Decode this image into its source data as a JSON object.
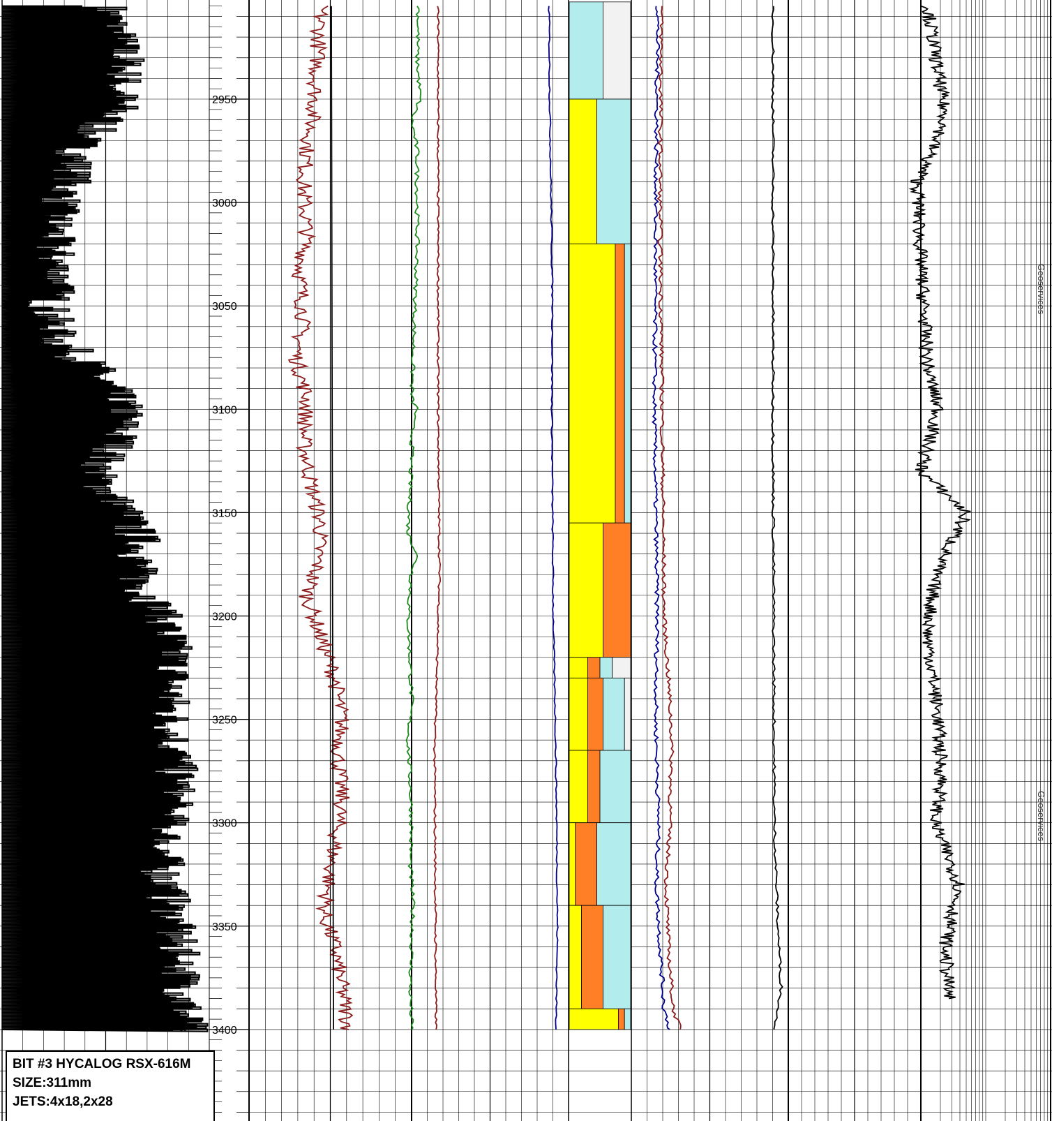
{
  "chart_data": {
    "type": "line",
    "title": "",
    "ylabel": "",
    "depth_range": [
      2903,
      3440
    ],
    "depth_ticks": [
      2950,
      3000,
      3050,
      3100,
      3150,
      3200,
      3250,
      3300,
      3350,
      3400
    ],
    "total_depth": 3400,
    "series": [
      {
        "track": "drilling-rate",
        "color": "#000000",
        "depth": [
          2905,
          2930,
          2955,
          2970,
          2990,
          3005,
          3020,
          3035,
          3050,
          3065,
          3080,
          3100,
          3115,
          3130,
          3150,
          3165,
          3180,
          3195,
          3210,
          3225,
          3240,
          3260,
          3280,
          3300,
          3320,
          3340,
          3360,
          3380,
          3400
        ],
        "values": [
          150,
          175,
          165,
          110,
          95,
          75,
          70,
          80,
          65,
          75,
          130,
          175,
          165,
          130,
          175,
          200,
          190,
          220,
          240,
          245,
          240,
          245,
          250,
          235,
          230,
          240,
          250,
          260,
          265
        ]
      },
      {
        "track": "gamma",
        "color": "#8b1a1a",
        "depth": [
          2905,
          2930,
          2955,
          2975,
          2995,
          3015,
          3035,
          3055,
          3075,
          3095,
          3115,
          3135,
          3155,
          3175,
          3190,
          3210,
          3230,
          3250,
          3270,
          3290,
          3310,
          3330,
          3345,
          3360,
          3380,
          3400
        ],
        "values": [
          460,
          455,
          450,
          440,
          435,
          440,
          430,
          435,
          425,
          440,
          435,
          445,
          460,
          455,
          440,
          460,
          480,
          490,
          485,
          490,
          480,
          470,
          465,
          480,
          490,
          500
        ]
      },
      {
        "track": "gamma-baseline",
        "color": "#000000",
        "depth": [
          2905,
          3400
        ],
        "values": [
          475,
          478
        ]
      },
      {
        "track": "weight-on-bit",
        "color": "#1e8a1e",
        "depth": [
          2905,
          2930,
          2950,
          2960,
          2975,
          3020,
          3095,
          3100,
          3105,
          3160,
          3170,
          3180,
          3200,
          3240,
          3260,
          3280,
          3300,
          3320,
          3340,
          3360,
          3380,
          3400
        ],
        "values": [
          600,
          598,
          602,
          590,
          598,
          598,
          590,
          598,
          592,
          585,
          598,
          590,
          585,
          590,
          585,
          588,
          590,
          588,
          592,
          590,
          588,
          590
        ]
      },
      {
        "track": "rpm",
        "color": "#8b1a1a",
        "depth": [
          2905,
          3100,
          3180,
          3265,
          3400
        ],
        "values": [
          628,
          628,
          630,
          623,
          625
        ]
      },
      {
        "track": "torque",
        "color": "#00008b",
        "depth": [
          2905,
          2950,
          3050,
          3100,
          3200,
          3250,
          3300,
          3350,
          3400
        ],
        "values": [
          787,
          788,
          792,
          791,
          793,
          796,
          798,
          799,
          797
        ]
      },
      {
        "track": "gas-c1",
        "color": "#00008b",
        "depth": [
          2905,
          3000,
          3100,
          3200,
          3250,
          3300,
          3330,
          3360,
          3390,
          3400
        ],
        "values": [
          943,
          940,
          938,
          942,
          940,
          944,
          941,
          946,
          952,
          960
        ]
      },
      {
        "track": "gas-total",
        "color": "#8b1a1a",
        "depth": [
          2905,
          3000,
          3100,
          3200,
          3230,
          3260,
          3300,
          3330,
          3360,
          3390,
          3400
        ],
        "values": [
          948,
          946,
          949,
          952,
          958,
          963,
          960,
          955,
          958,
          965,
          975
        ]
      },
      {
        "track": "mud-weight",
        "color": "#000000",
        "depth": [
          2905,
          3100,
          3200,
          3300,
          3350,
          3380,
          3400
        ],
        "values": [
          1108,
          1108,
          1109,
          1110,
          1115,
          1120,
          1110
        ]
      },
      {
        "track": "resistivity",
        "color": "#000000",
        "depth": [
          2905,
          2960,
          2990,
          3030,
          3080,
          3100,
          3130,
          3150,
          3180,
          3210,
          3250,
          3280,
          3300,
          3330,
          3360,
          3385
        ],
        "values": [
          1330,
          1355,
          1315,
          1320,
          1330,
          1345,
          1320,
          1385,
          1340,
          1330,
          1345,
          1350,
          1340,
          1375,
          1355,
          1360
        ]
      }
    ],
    "lithology": {
      "depth_top": [
        2903,
        2950,
        3020,
        3155,
        3220,
        3230,
        3265,
        3300,
        3340,
        3390
      ],
      "column": [
        {
          "claystone": 0.55,
          "siltstone": 0.45,
          "sandstone": 0.0,
          "dolomite": 0.0
        },
        {
          "claystone": 0.55,
          "siltstone": 0.0,
          "sandstone": 0.45,
          "dolomite": 0.0
        },
        {
          "claystone": 0.1,
          "siltstone": 0.0,
          "sandstone": 0.75,
          "dolomite": 0.15
        },
        {
          "claystone": 0.0,
          "siltstone": 0.0,
          "sandstone": 0.55,
          "dolomite": 0.45
        },
        {
          "claystone": 0.2,
          "siltstone": 0.3,
          "sandstone": 0.3,
          "dolomite": 0.2
        },
        {
          "claystone": 0.35,
          "siltstone": 0.1,
          "sandstone": 0.3,
          "dolomite": 0.25
        },
        {
          "claystone": 0.5,
          "siltstone": 0.0,
          "sandstone": 0.3,
          "dolomite": 0.2
        },
        {
          "claystone": 0.55,
          "siltstone": 0.0,
          "sandstone": 0.1,
          "dolomite": 0.35
        },
        {
          "claystone": 0.45,
          "siltstone": 0.0,
          "sandstone": 0.2,
          "dolomite": 0.35
        },
        {
          "claystone": 0.1,
          "siltstone": 0.0,
          "sandstone": 0.8,
          "dolomite": 0.1
        }
      ],
      "colors": {
        "claystone": "#b3ecec",
        "siltstone": "#f2f2f2",
        "sandstone": "#ffff00",
        "dolomite": "#ff7f27"
      }
    },
    "grid": true
  },
  "bit_info": {
    "line1": "BIT #3 HYCALOG RSX-616M",
    "line2": "SIZE:311mm",
    "line3": "JETS:4x18,2x28"
  },
  "watermarks": [
    "Geoservices",
    "Geoservices"
  ]
}
